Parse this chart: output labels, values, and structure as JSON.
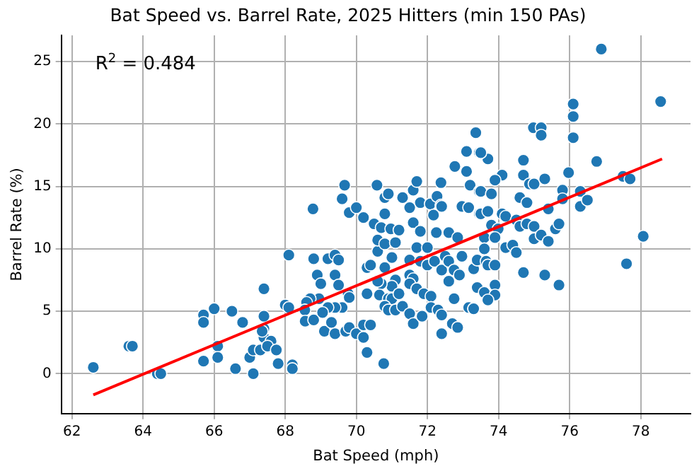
{
  "chart_data": {
    "type": "scatter",
    "title": "Bat Speed vs. Barrel Rate, 2025 Hitters (min 150 PAs)",
    "xlabel": "Bat Speed (mph)",
    "ylabel": "Barrel Rate (%)",
    "annotations": [
      "R$^{2}$ = 0.484"
    ],
    "xlim": [
      61.7,
      79.4
    ],
    "ylim": [
      -3.2,
      27.1
    ],
    "xticks": [
      62,
      64,
      66,
      68,
      70,
      72,
      74,
      76,
      78
    ],
    "yticks": [
      0,
      5,
      10,
      15,
      20,
      25
    ],
    "grid": true,
    "legend": false,
    "marker": "circle",
    "series": [
      {
        "type": "scatter",
        "color": "#1f77b4",
        "x": [
          62.6,
          63.6,
          63.7,
          64.4,
          64.5,
          65.7,
          65.7,
          65.7,
          66,
          66.1,
          66.1,
          66.5,
          66.6,
          66.8,
          67,
          67.1,
          67.1,
          67.3,
          67.4,
          67.4,
          67.4,
          67.4,
          67.6,
          67.8,
          68,
          68.1,
          68.1,
          68.2,
          68.2,
          67.35,
          67.5,
          67.75,
          68.78,
          69.67,
          69.6,
          69.8,
          70,
          70.2,
          70.58,
          70.8,
          70.9,
          70.8,
          70.5,
          70.7,
          70.97,
          71.2,
          71.3,
          71.5,
          71.6,
          71.7,
          71.8,
          71.6,
          71.8,
          72.08,
          72.27,
          72.38,
          72.17,
          72.38,
          72.4,
          72.77,
          73.1,
          73.1,
          73.36,
          73.46,
          73.2,
          72.97,
          73.16,
          73.46,
          73.46,
          68.8,
          68.9,
          69,
          69.2,
          69.4,
          69.5,
          69.4,
          69.5,
          69.77,
          69.8,
          69.6,
          69.4,
          69.2,
          68.95,
          68.7,
          68.6,
          68.55,
          68.56,
          68.8,
          69.05,
          69.1,
          69.3,
          69.4,
          69.7,
          69.8,
          70,
          70.2,
          70.2,
          70.4,
          70.3,
          70.77,
          70.3,
          70.4,
          70.6,
          70.6,
          70.8,
          71,
          71.1,
          70.8,
          71.1,
          71,
          70.7,
          70.6,
          70.3,
          70.65,
          70.9,
          71,
          71.2,
          70.8,
          70.9,
          71.1,
          71.3,
          71.5,
          71.7,
          72,
          71.5,
          71.6,
          71.5,
          71.7,
          71.9,
          72.1,
          71.5,
          71.6,
          71.85,
          72.1,
          72.3,
          72.4,
          72.4,
          71.8,
          72,
          72.2,
          72.4,
          72.5,
          72.6,
          72.6,
          72.75,
          72.9,
          72.97,
          72.75,
          72.7,
          72.85,
          73.16,
          73.3,
          73.3,
          73.4,
          73.4,
          72.25,
          72.6,
          72.85,
          76.89,
          78.56,
          76.1,
          76.1,
          76.1,
          74.98,
          75.2,
          75.2,
          73.7,
          73.5,
          76.76,
          74.7,
          74.7,
          74.1,
          73.9,
          74.87,
          75,
          75.3,
          75.97,
          75.8,
          76.3,
          73.5,
          73.8,
          74.6,
          74.8,
          75.8,
          75.4,
          76.3,
          76.5,
          77.5,
          77.7,
          73.5,
          73.7,
          74.1,
          74.2,
          73.8,
          73.99,
          73.6,
          73.9,
          74.5,
          74.6,
          74.8,
          75,
          75,
          75.2,
          75.4,
          75.6,
          75.7,
          73.6,
          74.2,
          74.4,
          74.5,
          73.65,
          73.7,
          73.9,
          74.7,
          75.3,
          75.7,
          77.6,
          78.07,
          73.9,
          73.6,
          73.9,
          73.7,
          73.3
        ],
        "values": [
          0.5,
          2.2,
          2.2,
          0,
          0,
          4.7,
          4.1,
          1,
          5.2,
          2.2,
          1.3,
          5,
          0.4,
          4.1,
          1.3,
          0,
          1.9,
          1.9,
          6.8,
          4.6,
          3.6,
          2.9,
          2.6,
          0.8,
          5.5,
          9.5,
          5.3,
          0.7,
          0.4,
          3.4,
          2.2,
          1.9,
          13.2,
          15.1,
          14,
          12.9,
          13.3,
          12.5,
          15.1,
          14.1,
          14.4,
          12.8,
          12,
          11.7,
          11.6,
          11.5,
          14.1,
          13.3,
          14.7,
          15.4,
          13.7,
          12.1,
          11.4,
          13.6,
          14.2,
          15.3,
          12.7,
          13.5,
          13.4,
          16.6,
          17.8,
          16.2,
          19.3,
          17.7,
          15.1,
          13.4,
          13.3,
          14.6,
          12.8,
          9.2,
          7.9,
          7.2,
          9.2,
          9.5,
          9.1,
          7.9,
          7.1,
          6.4,
          6.1,
          5.3,
          5.3,
          5.3,
          6,
          6,
          5.7,
          5.1,
          4.2,
          4.3,
          4.9,
          3.4,
          4.1,
          3.2,
          3.4,
          3.7,
          3.2,
          3.9,
          2.9,
          3.9,
          1.7,
          0.8,
          8.5,
          8.7,
          9.8,
          10.7,
          10.4,
          9.3,
          10.5,
          8.5,
          7.5,
          7,
          7.2,
          7.4,
          6.4,
          6.3,
          6,
          6,
          6.4,
          5.4,
          5.1,
          5.1,
          5.4,
          9.1,
          10.1,
          10.1,
          7.9,
          7.6,
          7.2,
          6.8,
          6.4,
          6.2,
          4.8,
          4,
          4.6,
          5.3,
          5.1,
          4.7,
          3.2,
          9,
          8.7,
          9,
          8.3,
          9.4,
          9,
          7.4,
          8.3,
          7.9,
          9.4,
          6,
          4,
          3.7,
          5.3,
          5.2,
          8.4,
          9.1,
          6.9,
          11.3,
          11.3,
          10.9,
          26,
          21.8,
          21.6,
          20.6,
          18.9,
          19.7,
          19.7,
          19.1,
          17.2,
          17.7,
          17,
          17.1,
          15.9,
          15.9,
          15.5,
          15.2,
          15.2,
          15.6,
          16.1,
          14.7,
          14.6,
          14.6,
          14.4,
          14.1,
          13.7,
          14,
          13.2,
          13.4,
          13.9,
          15.8,
          15.6,
          12.8,
          13,
          12.8,
          12.6,
          11.9,
          11.6,
          10.9,
          10.9,
          12.3,
          11.8,
          12,
          11.8,
          10.8,
          11.1,
          10.6,
          11.6,
          12,
          10,
          10.1,
          10.3,
          9.7,
          9,
          8.7,
          8.7,
          8.1,
          7.9,
          7.1,
          8.8,
          11,
          7.1,
          6.5,
          6.3,
          5.9,
          5.2
        ]
      },
      {
        "type": "line",
        "color": "#ff0000",
        "x": [
          62.6,
          78.6
        ],
        "values": [
          -1.7,
          17.2
        ],
        "marker": "none"
      }
    ]
  }
}
